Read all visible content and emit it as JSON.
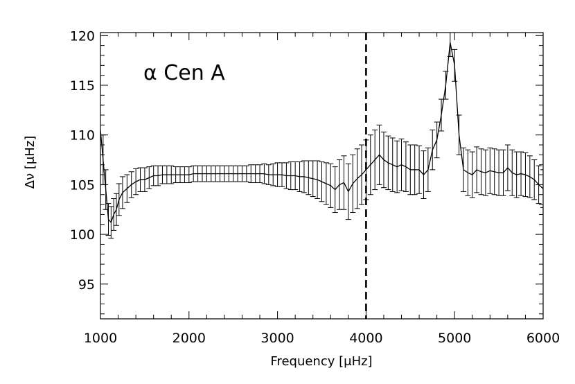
{
  "chart_data": {
    "type": "line",
    "title": "",
    "annotation": "α Cen A",
    "xlabel": "Frequency [μHz]",
    "ylabel": "Δν [μHz]",
    "xlim": [
      1000,
      6000
    ],
    "ylim": [
      91.5,
      120.3
    ],
    "x_ticks": [
      1000,
      2000,
      3000,
      4000,
      5000,
      6000
    ],
    "y_ticks": [
      95,
      100,
      105,
      110,
      115,
      120
    ],
    "vline": {
      "x": 4000,
      "style": "dashed"
    },
    "grid": false,
    "legend": "none",
    "series": [
      {
        "x": [
          1000,
          1030,
          1060,
          1090,
          1120,
          1150,
          1180,
          1210,
          1250,
          1300,
          1350,
          1400,
          1450,
          1500,
          1550,
          1600,
          1650,
          1700,
          1750,
          1800,
          1850,
          1900,
          1950,
          2000,
          2050,
          2100,
          2150,
          2200,
          2250,
          2300,
          2350,
          2400,
          2450,
          2500,
          2550,
          2600,
          2650,
          2700,
          2750,
          2800,
          2850,
          2900,
          2950,
          3000,
          3050,
          3100,
          3150,
          3200,
          3250,
          3300,
          3350,
          3400,
          3450,
          3500,
          3550,
          3600,
          3650,
          3700,
          3750,
          3800,
          3850,
          3900,
          3950,
          4000,
          4050,
          4100,
          4150,
          4200,
          4250,
          4300,
          4350,
          4400,
          4450,
          4500,
          4550,
          4600,
          4650,
          4700,
          4750,
          4800,
          4850,
          4900,
          4950,
          5000,
          5050,
          5100,
          5150,
          5200,
          5250,
          5300,
          5350,
          5400,
          5450,
          5500,
          5550,
          5600,
          5650,
          5700,
          5750,
          5800,
          5850,
          5900,
          5950,
          6000
        ],
        "y": [
          110.5,
          107.5,
          104.5,
          101.5,
          101.2,
          102.0,
          102.5,
          103.5,
          104.2,
          104.6,
          105.0,
          105.3,
          105.5,
          105.5,
          105.7,
          105.9,
          105.9,
          106.0,
          106.0,
          106.0,
          106.0,
          106.0,
          106.0,
          106.0,
          106.1,
          106.1,
          106.1,
          106.1,
          106.1,
          106.1,
          106.1,
          106.1,
          106.1,
          106.1,
          106.1,
          106.1,
          106.1,
          106.1,
          106.1,
          106.1,
          106.1,
          106.0,
          106.0,
          106.0,
          106.0,
          105.9,
          105.9,
          105.9,
          105.8,
          105.8,
          105.7,
          105.6,
          105.5,
          105.3,
          105.1,
          104.9,
          104.5,
          105.0,
          105.2,
          104.3,
          105.1,
          105.6,
          106.0,
          106.5,
          107.0,
          107.5,
          108.0,
          107.5,
          107.2,
          107.0,
          106.8,
          107.0,
          106.8,
          106.5,
          106.5,
          106.5,
          106.0,
          106.5,
          108.5,
          109.5,
          112.0,
          115.0,
          119.3,
          117.0,
          110.0,
          106.5,
          106.2,
          106.0,
          106.5,
          106.3,
          106.2,
          106.4,
          106.3,
          106.2,
          106.2,
          106.7,
          106.2,
          106.0,
          106.1,
          106.0,
          105.8,
          105.5,
          105.0,
          104.6
        ],
        "err": [
          2.5,
          2.5,
          2.0,
          1.6,
          1.6,
          1.6,
          1.6,
          1.6,
          1.6,
          1.4,
          1.3,
          1.3,
          1.2,
          1.2,
          1.1,
          1.0,
          1.0,
          0.9,
          0.9,
          0.9,
          0.8,
          0.8,
          0.8,
          0.8,
          0.8,
          0.8,
          0.8,
          0.8,
          0.8,
          0.8,
          0.8,
          0.8,
          0.8,
          0.8,
          0.8,
          0.8,
          0.8,
          0.9,
          0.9,
          0.9,
          1.0,
          1.0,
          1.1,
          1.2,
          1.2,
          1.3,
          1.4,
          1.4,
          1.5,
          1.6,
          1.7,
          1.8,
          1.9,
          2.0,
          2.1,
          2.2,
          2.3,
          2.5,
          2.7,
          2.8,
          2.9,
          3.0,
          3.0,
          3.0,
          3.0,
          3.0,
          3.0,
          2.8,
          2.7,
          2.7,
          2.6,
          2.6,
          2.5,
          2.5,
          2.5,
          2.4,
          2.4,
          2.2,
          2.0,
          1.8,
          1.6,
          1.4,
          1.4,
          1.6,
          2.0,
          2.2,
          2.3,
          2.3,
          2.3,
          2.3,
          2.3,
          2.3,
          2.3,
          2.3,
          2.3,
          2.3,
          2.3,
          2.3,
          2.2,
          2.2,
          2.1,
          2.0,
          1.9,
          1.9
        ]
      }
    ]
  }
}
